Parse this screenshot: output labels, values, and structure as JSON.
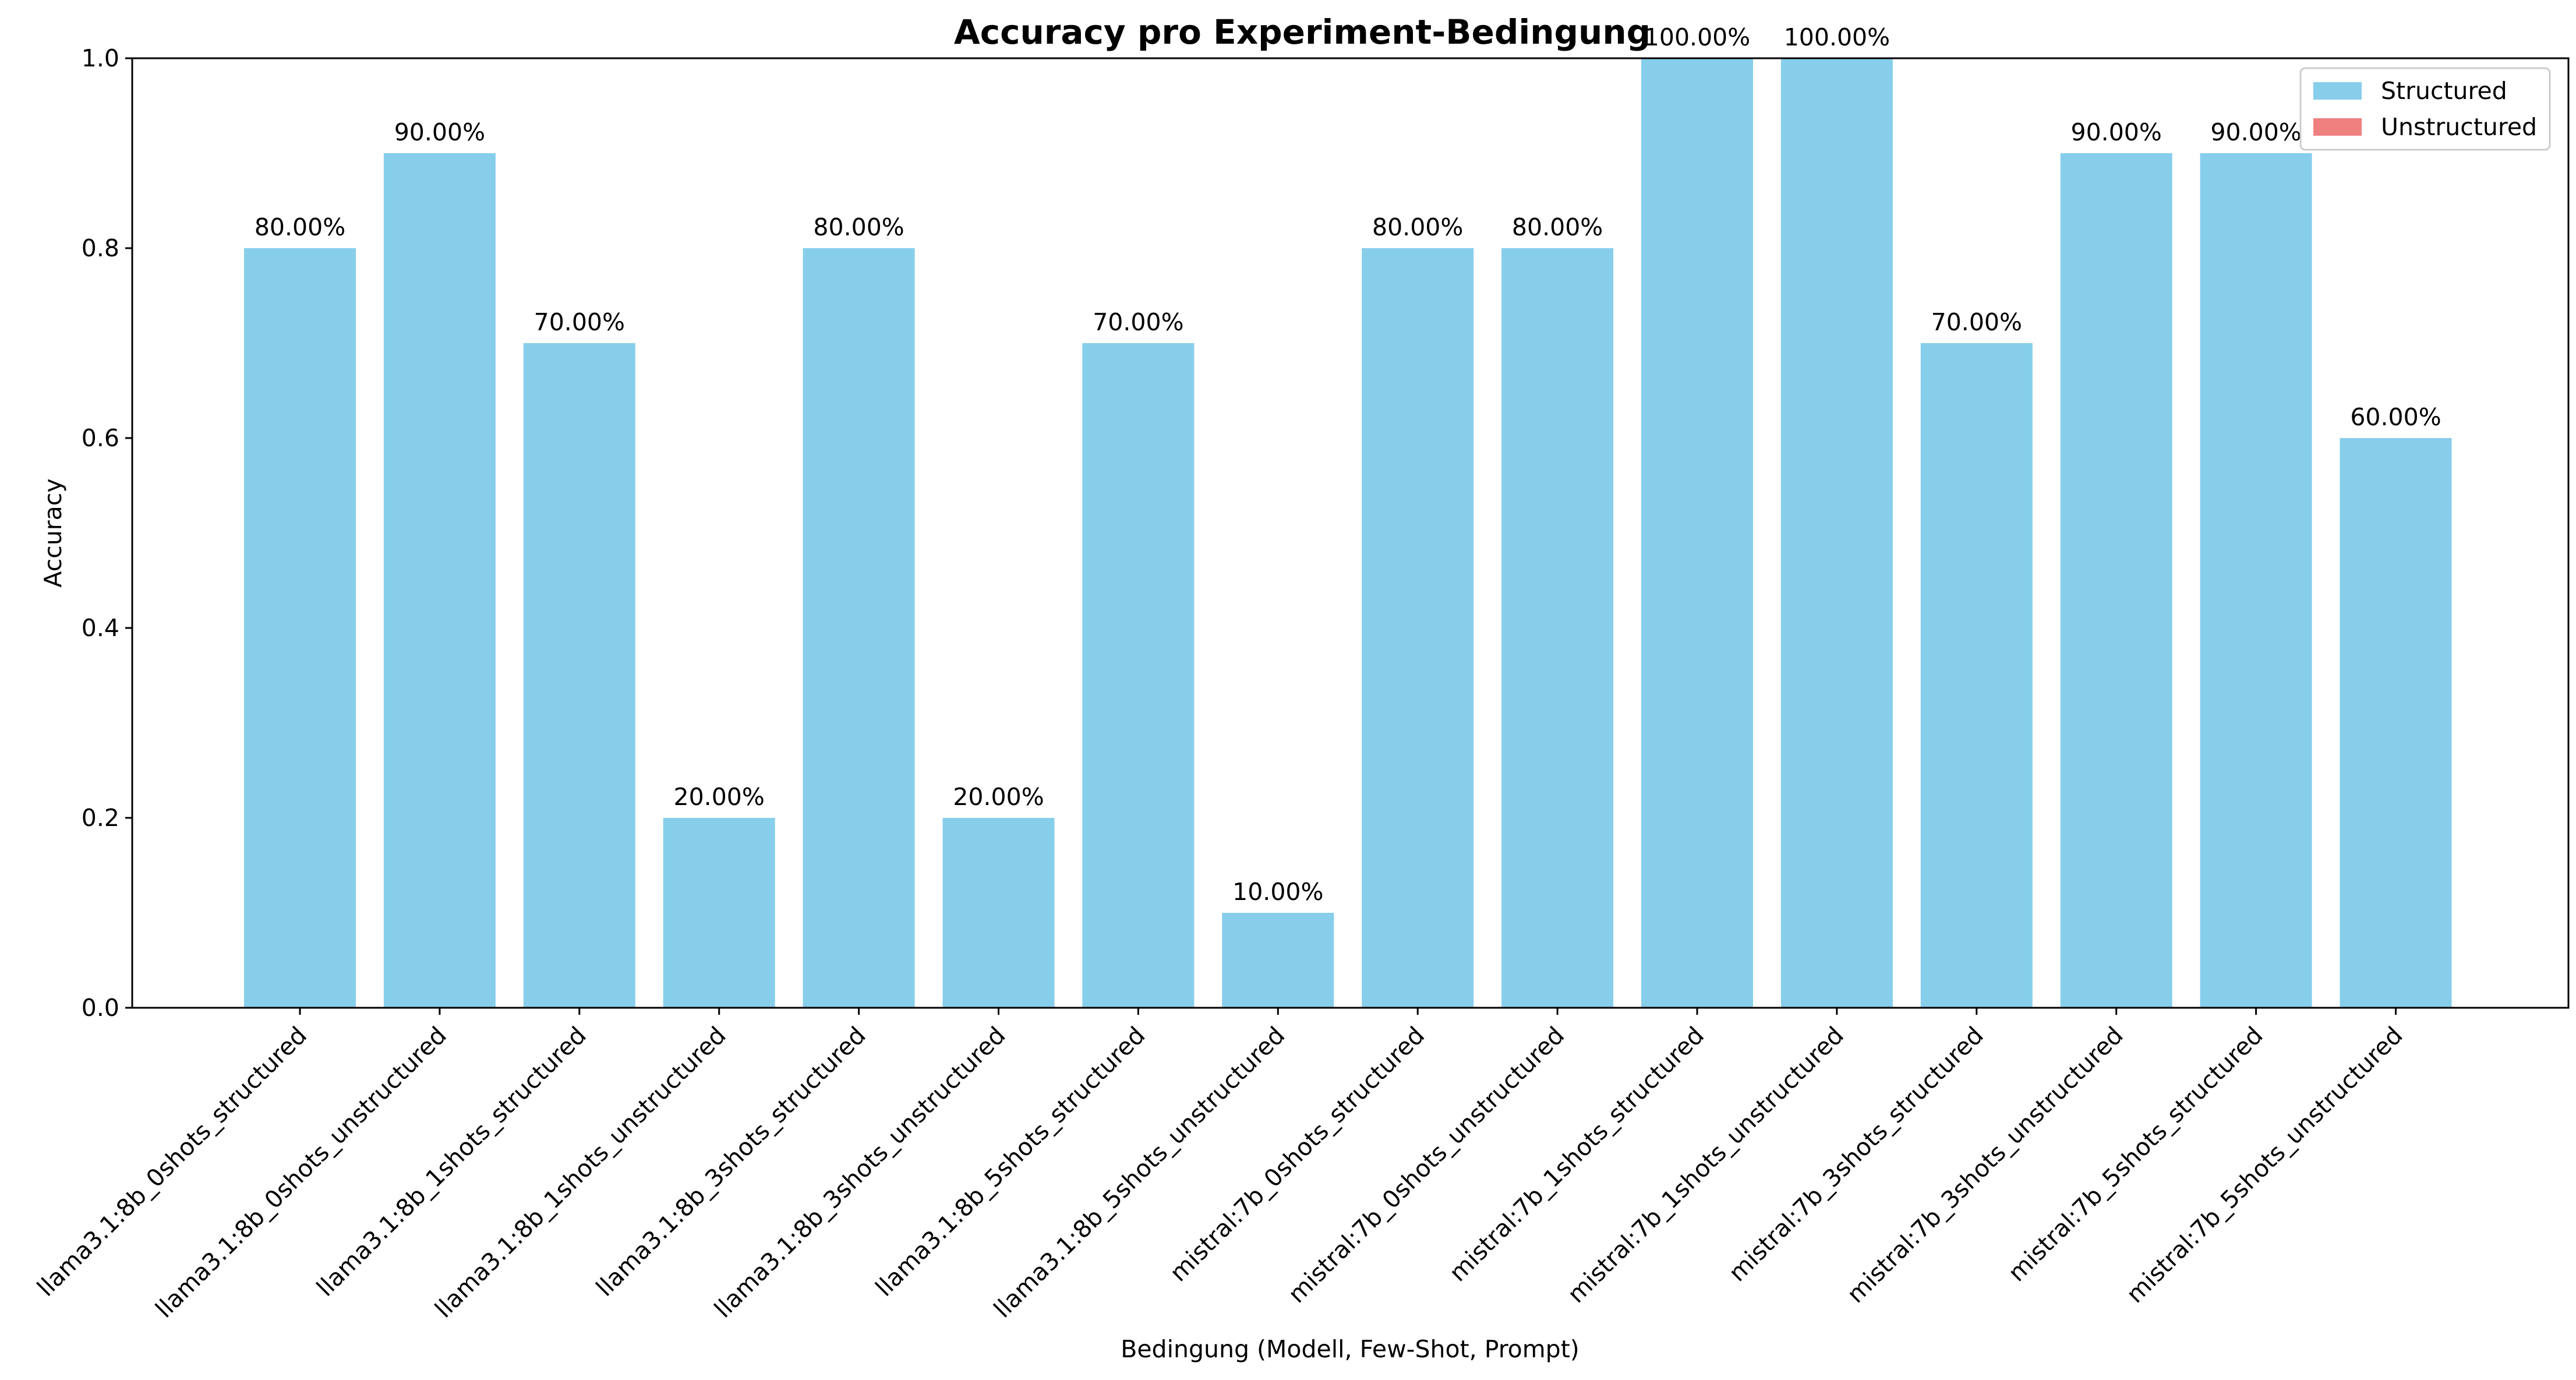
{
  "chart_data": {
    "type": "bar",
    "title": "Accuracy pro Experiment-Bedingung",
    "xlabel": "Bedingung (Modell, Few-Shot, Prompt)",
    "ylabel": "Accuracy",
    "ylim": [
      0,
      1.0
    ],
    "yticks": [
      "0.0",
      "0.2",
      "0.4",
      "0.6",
      "0.8",
      "1.0"
    ],
    "grid": false,
    "legend_position": "top-right",
    "categories": [
      "llama3.1:8b_0shots_structured",
      "llama3.1:8b_0shots_unstructured",
      "llama3.1:8b_1shots_structured",
      "llama3.1:8b_1shots_unstructured",
      "llama3.1:8b_3shots_structured",
      "llama3.1:8b_3shots_unstructured",
      "llama3.1:8b_5shots_structured",
      "llama3.1:8b_5shots_unstructured",
      "mistral:7b_0shots_structured",
      "mistral:7b_0shots_unstructured",
      "mistral:7b_1shots_structured",
      "mistral:7b_1shots_unstructured",
      "mistral:7b_3shots_structured",
      "mistral:7b_3shots_unstructured",
      "mistral:7b_5shots_structured",
      "mistral:7b_5shots_unstructured"
    ],
    "values": [
      0.8,
      0.9,
      0.7,
      0.2,
      0.8,
      0.2,
      0.7,
      0.1,
      0.8,
      0.8,
      1.0,
      1.0,
      0.7,
      0.9,
      0.9,
      0.6
    ],
    "value_labels": [
      "80.00%",
      "90.00%",
      "70.00%",
      "20.00%",
      "80.00%",
      "20.00%",
      "70.00%",
      "10.00%",
      "80.00%",
      "80.00%",
      "100.00%",
      "100.00%",
      "70.00%",
      "90.00%",
      "90.00%",
      "60.00%"
    ],
    "bar_color": "#87CEEB",
    "legend": [
      {
        "name": "Structured",
        "color": "#87CEEB"
      },
      {
        "name": "Unstructured",
        "color": "#F08080"
      }
    ]
  }
}
